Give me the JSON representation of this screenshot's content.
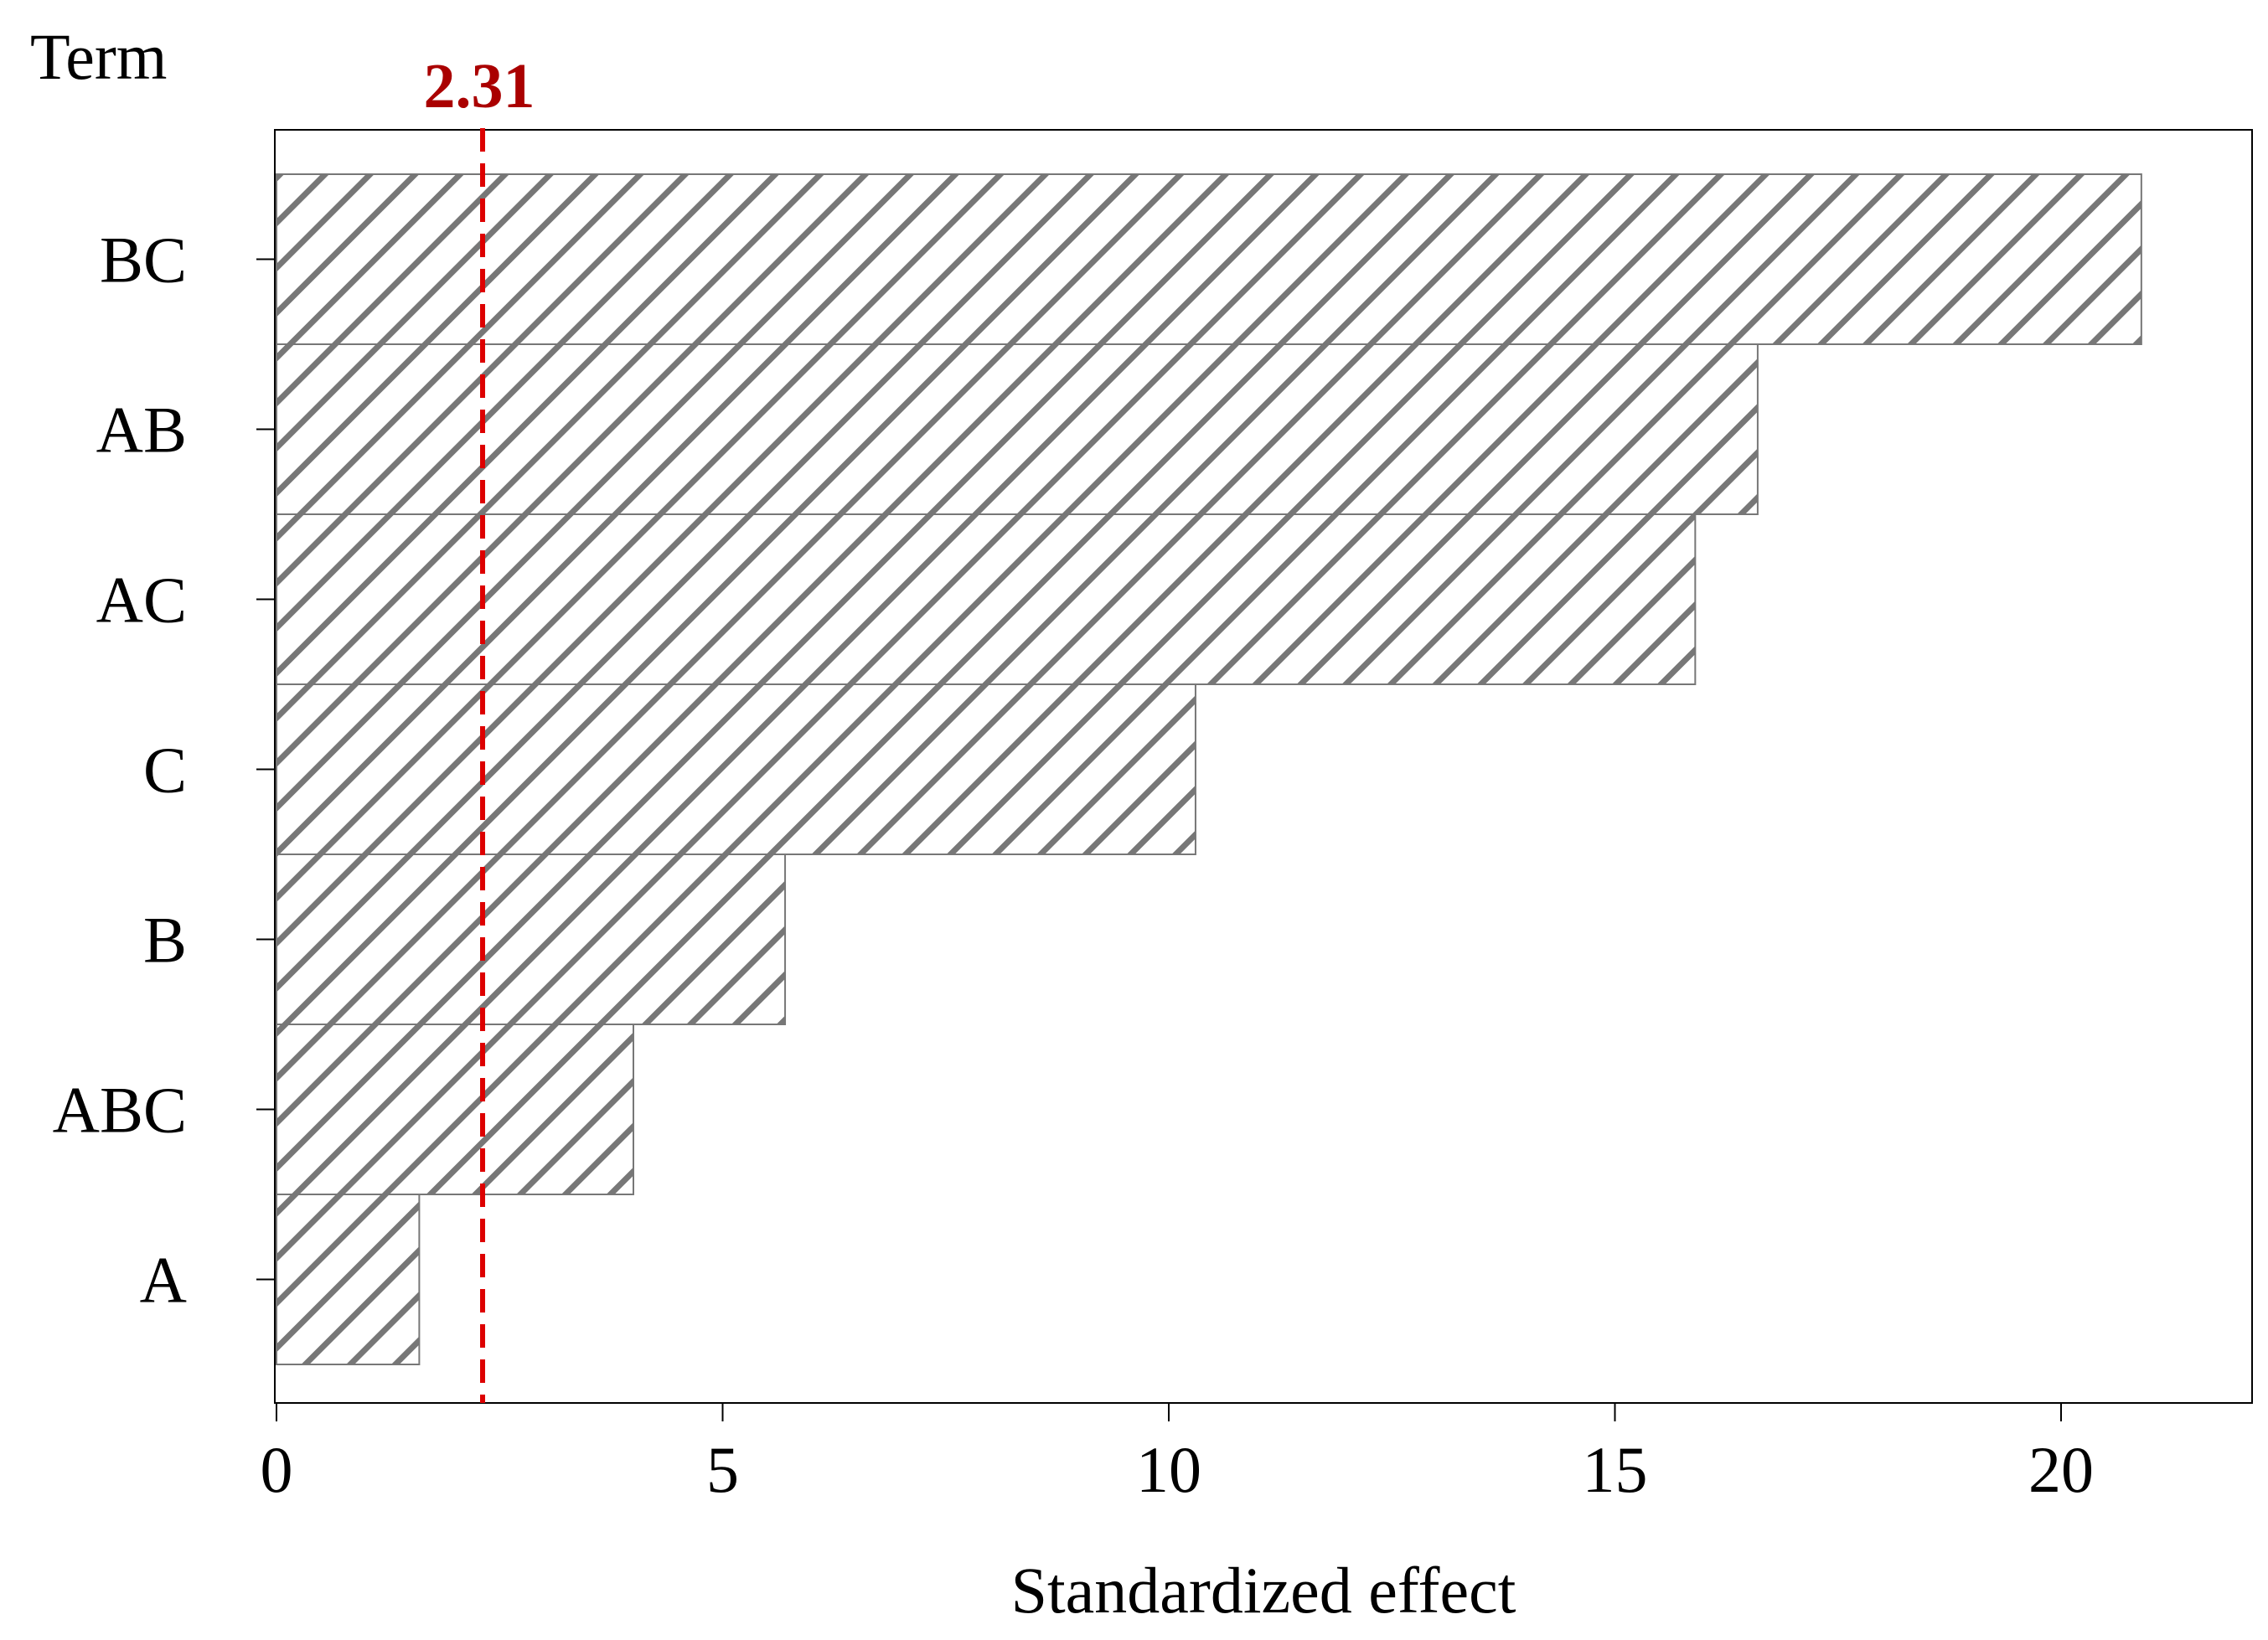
{
  "chart_data": {
    "type": "bar",
    "orientation": "horizontal",
    "title": "",
    "xlabel": "Standardized effect",
    "ylabel": "Term",
    "categories": [
      "BC",
      "AB",
      "AC",
      "C",
      "B",
      "ABC",
      "A"
    ],
    "values": [
      20.9,
      16.6,
      15.9,
      10.3,
      5.7,
      4.0,
      1.6
    ],
    "xlim": [
      0,
      22.2
    ],
    "xticks": [
      "0",
      "5",
      "10",
      "15",
      "20"
    ],
    "grid": false,
    "legend": "none",
    "reference_line": {
      "value": 2.31,
      "label": "2.31",
      "color": "#dd0000",
      "label_color": "#aa0000",
      "style": "dashed"
    },
    "bar_fill": "hatched",
    "bar_hatch_color": "#777777"
  }
}
